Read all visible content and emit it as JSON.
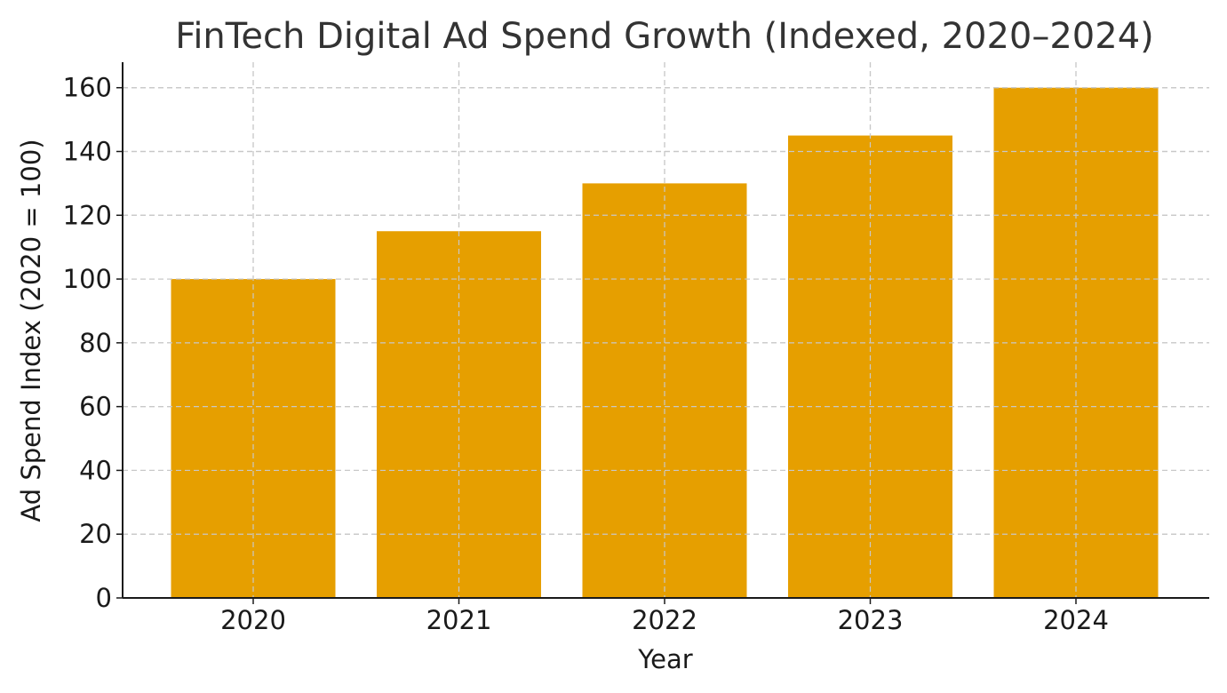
{
  "chart_data": {
    "type": "bar",
    "title": "FinTech Digital Ad Spend Growth (Indexed, 2020–2024)",
    "xlabel": "Year",
    "ylabel": "Ad Spend Index (2020 = 100)",
    "categories": [
      "2020",
      "2021",
      "2022",
      "2023",
      "2024"
    ],
    "values": [
      100,
      115,
      130,
      145,
      160
    ],
    "ylim": [
      0,
      168
    ],
    "yticks": [
      0,
      20,
      40,
      60,
      80,
      100,
      120,
      140,
      160
    ],
    "grid": true,
    "bar_color": "#E69F00"
  }
}
